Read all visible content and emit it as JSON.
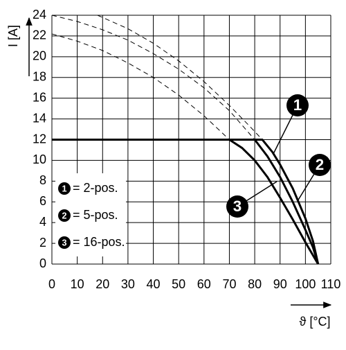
{
  "chart_data": {
    "type": "line",
    "y_label": "I [A]",
    "x_label": "ϑ [°C]",
    "xlim": [
      0,
      110
    ],
    "ylim": [
      0,
      24
    ],
    "xticks": [
      0,
      10,
      20,
      30,
      40,
      50,
      60,
      70,
      80,
      90,
      100,
      110
    ],
    "yticks": [
      0,
      2,
      4,
      6,
      8,
      10,
      12,
      14,
      16,
      18,
      20,
      22,
      24
    ],
    "grid": true,
    "series": [
      {
        "marker": "1",
        "name": "= 2-pos.",
        "color": "#000000",
        "style": "solid",
        "x": [
          0,
          83,
          87,
          90,
          95,
          100,
          103,
          105
        ],
        "values": [
          12,
          12,
          10.8,
          9.6,
          7.3,
          4.4,
          2.2,
          0
        ]
      },
      {
        "marker": "2",
        "name": "= 5-pos.",
        "color": "#000000",
        "style": "solid",
        "x": [
          0,
          80,
          85,
          90,
          95,
          100,
          103,
          105
        ],
        "values": [
          12,
          12,
          10.4,
          8.4,
          6,
          3.3,
          1.6,
          0
        ]
      },
      {
        "marker": "3",
        "name": "= 16-pos.",
        "color": "#000000",
        "style": "solid",
        "x": [
          0,
          70,
          75,
          80,
          85,
          90,
          95,
          100,
          105
        ],
        "values": [
          12,
          12,
          11.2,
          10,
          8.4,
          6.4,
          4.3,
          2.1,
          0
        ]
      },
      {
        "color": "#000000",
        "style": "dashed",
        "x": [
          18,
          30,
          40,
          50,
          60,
          70,
          78,
          83
        ],
        "values": [
          24,
          22.7,
          21.3,
          19.6,
          17.6,
          15.3,
          13.3,
          12
        ]
      },
      {
        "color": "#000000",
        "style": "dashed",
        "x": [
          0,
          10,
          20,
          30,
          40,
          50,
          60,
          70,
          80
        ],
        "values": [
          24,
          23.4,
          22.6,
          21.6,
          20.3,
          18.8,
          17,
          14.8,
          12
        ]
      },
      {
        "color": "#000000",
        "style": "dashed",
        "x": [
          0,
          10,
          20,
          30,
          40,
          50,
          60,
          70
        ],
        "values": [
          22.2,
          21.5,
          20.6,
          19.4,
          18,
          16.3,
          14.3,
          12
        ]
      }
    ]
  }
}
